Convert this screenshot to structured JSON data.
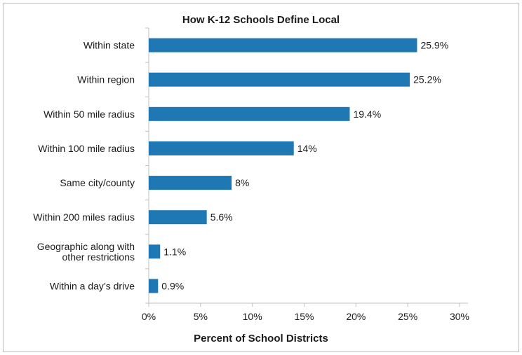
{
  "chart_data": {
    "type": "bar",
    "orientation": "horizontal",
    "title": "How K-12 Schools Define Local",
    "xlabel": "Percent of School Districts",
    "ylabel": "",
    "xlim": [
      0,
      30
    ],
    "xticks": [
      0,
      5,
      10,
      15,
      20,
      25,
      30
    ],
    "tick_labels": [
      "0%",
      "5%",
      "10%",
      "15%",
      "20%",
      "25%",
      "30%"
    ],
    "categories": [
      [
        "Within state"
      ],
      [
        "Within region"
      ],
      [
        "Within 50 mile radius"
      ],
      [
        "Within 100 mile radius"
      ],
      [
        "Same city/county"
      ],
      [
        "Within 200 miles radius"
      ],
      [
        "Geographic along with",
        "other restrictions"
      ],
      [
        "Within a day’s drive"
      ]
    ],
    "values": [
      25.9,
      25.2,
      19.4,
      14,
      8,
      5.6,
      1.1,
      0.9
    ],
    "value_labels": [
      "25.9%",
      "25.2%",
      "19.4%",
      "14%",
      "8%",
      "5.6%",
      "1.1%",
      "0.9%"
    ],
    "bar_color": "#1f77b4",
    "grid": false
  }
}
